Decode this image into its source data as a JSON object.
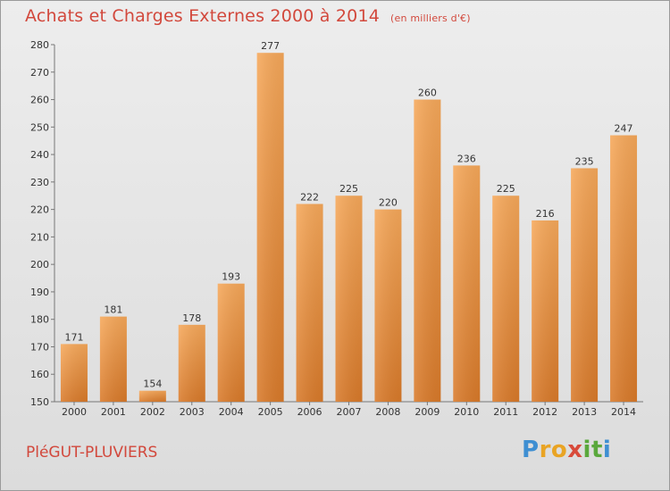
{
  "header": {
    "title": "Achats et Charges Externes 2000 à 2014",
    "unit": "(en milliers d'€)"
  },
  "footer": {
    "commune": "PléGUT-PLUVIERS",
    "logo_letters": [
      "P",
      "r",
      "o",
      "x",
      "i",
      "t",
      "i"
    ],
    "logo_colors": [
      "#3f8fd2",
      "#e9a424",
      "#e9a424",
      "#d84a3a",
      "#5aa83c",
      "#5aa83c",
      "#3f8fd2"
    ]
  },
  "colors": {
    "bar_top": "#f6a85a",
    "bar_bottom": "#d97a2a",
    "title": "#d2483c"
  },
  "chart_data": {
    "type": "bar",
    "title": "Achats et Charges Externes 2000 à 2014",
    "subtitle": "(en milliers d'€)",
    "categories": [
      "2000",
      "2001",
      "2002",
      "2003",
      "2004",
      "2005",
      "2006",
      "2007",
      "2008",
      "2009",
      "2010",
      "2011",
      "2012",
      "2013",
      "2014"
    ],
    "values": [
      171,
      181,
      154,
      178,
      193,
      277,
      222,
      225,
      220,
      260,
      236,
      225,
      216,
      235,
      247
    ],
    "ylim": [
      150,
      280
    ],
    "yticks": [
      150,
      160,
      170,
      180,
      190,
      200,
      210,
      220,
      230,
      240,
      250,
      260,
      270,
      280
    ],
    "grid": false,
    "legend": "none"
  }
}
